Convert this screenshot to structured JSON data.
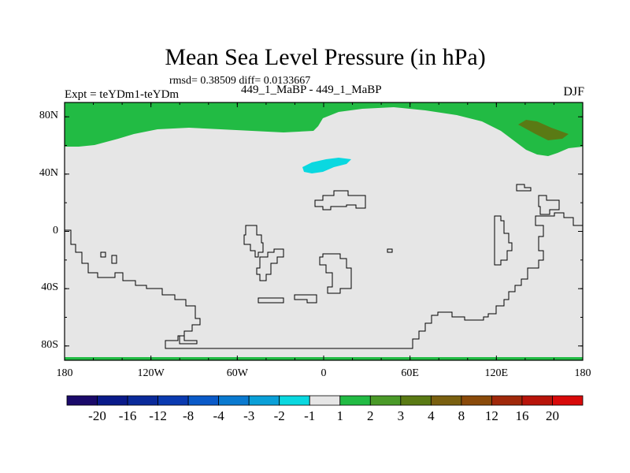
{
  "title": "Mean Sea Level Pressure (in hPa)",
  "stats": "rmsd= 0.38509 diff= 0.0133667",
  "left_label": "Expt = teYDm1-teYDm",
  "subtitle": "449_1_MaBP - 449_1_MaBP",
  "season": "DJF",
  "y_axis": {
    "ticks": [
      {
        "value": 80,
        "label": "80N"
      },
      {
        "value": 40,
        "label": "40N"
      },
      {
        "value": 0,
        "label": "0"
      },
      {
        "value": -40,
        "label": "40S"
      },
      {
        "value": -80,
        "label": "80S"
      }
    ]
  },
  "x_axis": {
    "ticks": [
      {
        "value": -180,
        "label": "180"
      },
      {
        "value": -120,
        "label": "120W"
      },
      {
        "value": -60,
        "label": "60W"
      },
      {
        "value": 0,
        "label": "0"
      },
      {
        "value": 60,
        "label": "60E"
      },
      {
        "value": 120,
        "label": "120E"
      },
      {
        "value": 180,
        "label": "180"
      }
    ]
  },
  "colorbar": {
    "labels": [
      "-20",
      "-16",
      "-12",
      "-8",
      "-4",
      "-3",
      "-2",
      "-1",
      "1",
      "2",
      "3",
      "4",
      "8",
      "12",
      "16",
      "20"
    ],
    "colors": [
      "#1a0a6a",
      "#0a1a8a",
      "#0a2a9a",
      "#0a3ab0",
      "#0a5ac8",
      "#0a7ad0",
      "#0aa0d8",
      "#0ad8e0",
      "#e6e6e6",
      "#22bb44",
      "#4a9a28",
      "#5a7a14",
      "#7a6010",
      "#8a4a0a",
      "#a0280a",
      "#b8140a",
      "#d80a0a"
    ]
  },
  "map_colors": {
    "neutral": "#e6e6e6",
    "positive_1_2": "#22bb44",
    "positive_3_4": "#5a7a14",
    "negative_2_1": "#0ad8e0"
  }
}
